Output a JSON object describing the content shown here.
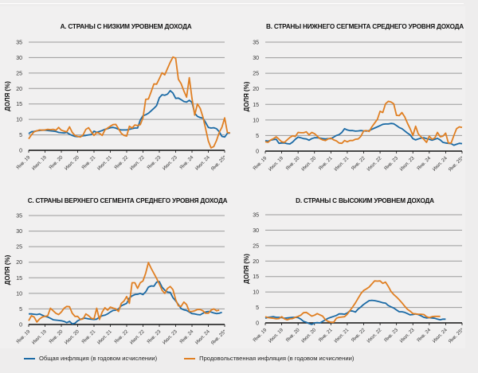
{
  "colors": {
    "headline": "#1b6aa5",
    "food": "#e07f22",
    "grid": "#9a9a9a",
    "axis": "#111111"
  },
  "legend": [
    {
      "name": "Общая инфляция (в годовом исчислении)",
      "color": "#1b6aa5"
    },
    {
      "name": "Продовольственная инфляция (в годовом исчислении)",
      "color": "#e07f22"
    }
  ],
  "chart_data": [
    {
      "type": "line",
      "title": "A. СТРАНЫ С НИЗКИМ УРОВНЕМ ДОХОДА",
      "ylabel": "ДОЛЯ (%)",
      "xlabel": "",
      "ylim": [
        0,
        35
      ],
      "yticks": [
        0,
        5,
        10,
        15,
        20,
        25,
        30,
        35
      ],
      "xticks": [
        "Янв. 19",
        "Июл. 19",
        "Янв. 20",
        "Июл. 20",
        "Янв. 21",
        "Июл. 21",
        "Янв. 22",
        "Июл. 22",
        "Янв. 23",
        "Июл. 23",
        "Янв. 24",
        "Июл. 24",
        "Янв. 25*"
      ],
      "x_start": "2019-01",
      "x_end": "2025-01",
      "frequency": "monthly",
      "grid": true,
      "legend": "bottom",
      "series": [
        {
          "name": "Общая инфляция (в годовом исчислении)",
          "values": [
            5.4,
            6.0,
            6.1,
            6.3,
            6.4,
            6.5,
            6.5,
            6.4,
            6.3,
            6.2,
            6.1,
            5.8,
            5.7,
            5.6,
            5.8,
            5.2,
            4.8,
            4.5,
            4.4,
            4.5,
            4.7,
            4.8,
            5.0,
            5.1,
            6.2,
            5.8,
            6.1,
            6.4,
            6.8,
            7.0,
            7.3,
            7.4,
            7.2,
            6.8,
            6.6,
            6.6,
            6.6,
            6.8,
            7.0,
            7.2,
            7.2,
            9.8,
            11.2,
            11.5,
            12.0,
            12.8,
            13.6,
            14.5,
            17.0,
            18.0,
            17.8,
            18.2,
            19.3,
            18.5,
            16.8,
            16.9,
            16.4,
            15.8,
            15.6,
            16.2,
            15.5,
            12.0,
            11.0,
            10.6,
            10.4,
            9.0,
            7.4,
            7.2,
            7.3,
            7.0,
            6.0,
            4.5,
            4.3,
            5.5,
            5.6
          ]
        },
        {
          "name": "Продовольственная инфляция (в годовом исчислении)",
          "values": [
            3.7,
            5.0,
            6.0,
            6.3,
            6.6,
            6.5,
            6.6,
            6.8,
            6.7,
            6.8,
            6.5,
            7.4,
            6.5,
            6.2,
            6.0,
            7.6,
            5.8,
            4.8,
            4.5,
            4.3,
            5.0,
            6.8,
            7.3,
            6.0,
            4.8,
            5.8,
            5.5,
            4.8,
            6.6,
            7.2,
            7.8,
            8.3,
            8.4,
            7.0,
            5.5,
            4.8,
            4.6,
            7.8,
            7.2,
            8.2,
            8.0,
            8.3,
            10.5,
            16.5,
            16.6,
            19.0,
            21.5,
            21.4,
            23.2,
            25.1,
            24.4,
            26.5,
            28.5,
            30.2,
            29.8,
            23.0,
            21.6,
            19.2,
            17.2,
            23.5,
            16.8,
            11.4,
            15.0,
            13.6,
            10.8,
            7.0,
            3.0,
            0.8,
            1.2,
            3.2,
            5.8,
            7.5,
            10.5,
            5.8,
            5.6
          ]
        }
      ]
    },
    {
      "type": "line",
      "title": "B. СТРАНЫ НИЖНЕГО СЕГМЕНТА СРЕДНЕГО УРОВНЯ ДОХОДА",
      "ylabel": "ДОЛЯ (%)",
      "xlabel": "",
      "ylim": [
        0,
        35
      ],
      "yticks": [
        0,
        5,
        10,
        15,
        20,
        25,
        30,
        35
      ],
      "xticks": [
        "Янв. 19",
        "Июл. 19",
        "Янв. 20",
        "Июл. 20",
        "Янв. 21",
        "Июл. 21",
        "Янв. 22",
        "Июл. 22",
        "Янв. 23",
        "Июл. 23",
        "Янв. 24",
        "Июл. 24",
        "Янв. 25*"
      ],
      "x_start": "2019-01",
      "x_end": "2025-01",
      "frequency": "monthly",
      "grid": true,
      "legend": "bottom",
      "series": [
        {
          "name": "Общая инфляция (в годовом исчислении)",
          "values": [
            3.4,
            3.2,
            3.5,
            3.7,
            3.8,
            2.5,
            2.6,
            2.6,
            2.4,
            2.3,
            2.9,
            3.8,
            4.5,
            4.3,
            4.0,
            3.9,
            3.5,
            4.0,
            4.3,
            4.3,
            4.2,
            4.0,
            3.9,
            4.0,
            4.0,
            4.5,
            5.0,
            5.3,
            6.0,
            7.2,
            6.8,
            6.6,
            6.6,
            6.4,
            6.5,
            6.6,
            6.5,
            6.4,
            6.6,
            7.0,
            7.4,
            7.8,
            8.2,
            8.6,
            8.7,
            8.7,
            8.9,
            8.8,
            8.2,
            7.6,
            7.2,
            6.5,
            5.8,
            5.2,
            4.0,
            3.6,
            3.9,
            4.2,
            4.3,
            4.0,
            3.8,
            3.5,
            3.8,
            4.1,
            3.6,
            2.8,
            2.6,
            2.5,
            2.4,
            1.9,
            2.2,
            2.5,
            2.4
          ]
        },
        {
          "name": "Продовольственная инфляция (в годовом исчислении)",
          "values": [
            3.0,
            2.8,
            3.6,
            4.0,
            4.6,
            3.8,
            3.0,
            2.8,
            3.6,
            4.4,
            4.9,
            4.7,
            6.0,
            5.9,
            5.9,
            6.2,
            5.2,
            6.0,
            5.6,
            4.8,
            4.0,
            3.6,
            3.4,
            3.9,
            4.2,
            3.6,
            3.3,
            2.6,
            2.5,
            3.4,
            3.0,
            3.4,
            3.4,
            3.8,
            3.9,
            4.8,
            6.5,
            6.6,
            6.3,
            7.8,
            9.0,
            10.2,
            12.8,
            12.4,
            15.2,
            16.0,
            15.8,
            15.2,
            11.5,
            11.4,
            12.4,
            11.0,
            9.0,
            7.2,
            5.0,
            8.0,
            5.5,
            4.6,
            3.8,
            2.8,
            4.8,
            3.8,
            4.2,
            6.0,
            4.6,
            4.8,
            5.8,
            2.6,
            2.6,
            5.0,
            7.2,
            7.8,
            7.6
          ]
        }
      ]
    },
    {
      "type": "line",
      "title": "C. СТРАНЫ ВЕРХНЕГО СЕГМЕНТА СРЕДНЕГО УРОВНЯ ДОХОДА",
      "ylabel": "ДОЛЯ (%)",
      "xlabel": "",
      "ylim": [
        0,
        35
      ],
      "yticks": [
        0,
        5,
        10,
        15,
        20,
        25,
        30,
        35
      ],
      "xticks": [
        "Янв. 19",
        "Июл. 19",
        "Янв. 20",
        "Июл. 20",
        "Янв. 21",
        "Июл. 21",
        "Янв. 22",
        "Июл. 22",
        "Янв. 23",
        "Июл. 23",
        "Янв. 24",
        "Июл. 24",
        "Янв. 25*"
      ],
      "x_start": "2019-01",
      "x_end": "2025-01",
      "frequency": "monthly",
      "grid": true,
      "legend": "bottom",
      "series": [
        {
          "name": "Общая инфляция (в годовом исчислении)",
          "values": [
            3.4,
            3.4,
            3.3,
            3.2,
            3.4,
            3.0,
            2.6,
            2.4,
            2.0,
            1.5,
            1.4,
            1.3,
            1.2,
            1.0,
            0.6,
            1.0,
            0.2,
            0.4,
            1.2,
            1.6,
            2.0,
            2.0,
            1.8,
            1.7,
            1.6,
            1.7,
            2.4,
            2.8,
            3.0,
            3.4,
            4.0,
            4.5,
            4.6,
            5.0,
            6.0,
            6.4,
            6.8,
            8.5,
            9.2,
            9.6,
            9.7,
            10.0,
            9.6,
            10.5,
            12.0,
            12.4,
            12.3,
            13.6,
            13.8,
            12.0,
            11.0,
            10.4,
            10.3,
            8.6,
            7.6,
            6.4,
            5.1,
            4.7,
            4.5,
            4.0,
            3.5,
            3.4,
            3.2,
            3.1,
            3.6,
            4.0,
            4.2,
            4.0,
            3.7,
            3.5,
            3.6,
            3.9
          ]
        },
        {
          "name": "Продовольственная инфляция (в годовом исчислении)",
          "values": [
            1.2,
            2.8,
            2.4,
            0.8,
            1.8,
            2.4,
            2.6,
            2.8,
            5.2,
            4.4,
            3.6,
            3.2,
            4.0,
            5.2,
            5.8,
            5.7,
            3.6,
            2.6,
            2.6,
            1.6,
            1.8,
            3.4,
            2.8,
            2.0,
            1.8,
            5.2,
            1.6,
            4.0,
            5.4,
            4.6,
            5.6,
            5.3,
            5.0,
            4.2,
            6.8,
            7.5,
            9.0,
            6.8,
            13.4,
            13.4,
            11.6,
            13.4,
            14.0,
            16.5,
            19.9,
            18.0,
            16.4,
            14.8,
            13.0,
            11.0,
            10.0,
            11.6,
            12.2,
            11.2,
            8.0,
            6.0,
            5.8,
            7.2,
            6.4,
            4.2,
            4.2,
            4.4,
            4.8,
            4.8,
            4.4,
            3.6,
            3.6,
            4.6,
            5.0,
            4.4,
            4.6
          ]
        }
      ]
    },
    {
      "type": "line",
      "title": "D. СТРАНЫ С ВЫСОКИМ УРОВНЕМ ДОХОДА",
      "ylabel": "ДОЛЯ (%)",
      "xlabel": "",
      "ylim": [
        0,
        35
      ],
      "yticks": [
        0,
        5,
        10,
        15,
        20,
        25,
        30,
        35
      ],
      "xticks": [
        "Янв. 19",
        "Июл. 19",
        "Янв. 20",
        "Июл. 20",
        "Янв. 21",
        "Июл. 21",
        "Янв. 22",
        "Июл. 22",
        "Янв. 23",
        "Июл. 23",
        "Янв. 24",
        "Июл. 24",
        "Янв. 25*"
      ],
      "x_start": "2019-01",
      "x_end": "2025-01",
      "frequency": "monthly",
      "grid": true,
      "legend": "bottom",
      "series": [
        {
          "name": "Общая инфляция (в годовом исчислении)",
          "values": [
            1.5,
            1.8,
            1.9,
            2.0,
            1.8,
            1.8,
            1.7,
            1.5,
            1.6,
            1.7,
            1.8,
            1.8,
            1.7,
            1.2,
            0.5,
            0.2,
            -0.2,
            -0.5,
            0.0,
            0.1,
            0.0,
            0.5,
            1.0,
            1.5,
            1.8,
            2.1,
            2.4,
            2.9,
            2.9,
            2.8,
            3.2,
            3.9,
            3.8,
            3.5,
            4.5,
            5.2,
            6.0,
            6.6,
            7.2,
            7.3,
            7.2,
            7.0,
            6.8,
            6.5,
            6.4,
            5.6,
            5.2,
            4.8,
            4.2,
            3.6,
            3.6,
            3.4,
            3.0,
            2.6,
            2.7,
            2.9,
            2.7,
            2.3,
            1.8,
            1.6,
            1.7,
            1.6,
            1.5,
            1.2,
            1.0,
            1.2,
            1.2
          ]
        },
        {
          "name": "Продовольственная инфляция (в годовом исчислении)",
          "values": [
            2.0,
            1.7,
            1.6,
            1.5,
            1.3,
            1.4,
            2.0,
            1.3,
            1.0,
            1.3,
            1.4,
            1.8,
            2.1,
            2.5,
            3.3,
            3.4,
            2.8,
            2.2,
            2.5,
            3.0,
            2.6,
            2.2,
            1.0,
            0.5,
            0.2,
            0.2,
            1.5,
            1.8,
            1.9,
            2.0,
            2.8,
            4.0,
            5.2,
            6.5,
            8.0,
            9.5,
            10.5,
            11.0,
            11.6,
            12.6,
            13.6,
            13.5,
            13.6,
            12.8,
            13.2,
            11.8,
            10.2,
            9.2,
            8.4,
            7.5,
            6.5,
            5.4,
            4.4,
            3.8,
            3.0,
            2.9,
            2.8,
            2.8,
            2.7,
            2.0,
            1.7,
            2.0,
            2.1,
            2.1,
            2.1
          ]
        }
      ]
    }
  ]
}
